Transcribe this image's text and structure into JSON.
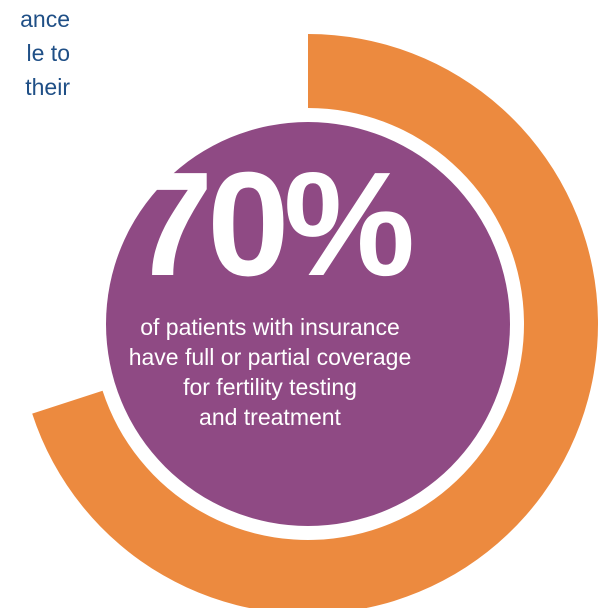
{
  "intro_text": {
    "line1": "ance",
    "line2": "le to",
    "line3": "their"
  },
  "chart_data": {
    "type": "pie",
    "value": 70,
    "value_label": "70%",
    "caption": [
      "of patients with insurance",
      "have full or partial coverage",
      "for fertility testing",
      "and treatment"
    ],
    "colors": {
      "ring": "#ec8a3f",
      "center": "#8f4a84",
      "value_text": "#ffffff",
      "caption_text": "#ffffff"
    }
  }
}
